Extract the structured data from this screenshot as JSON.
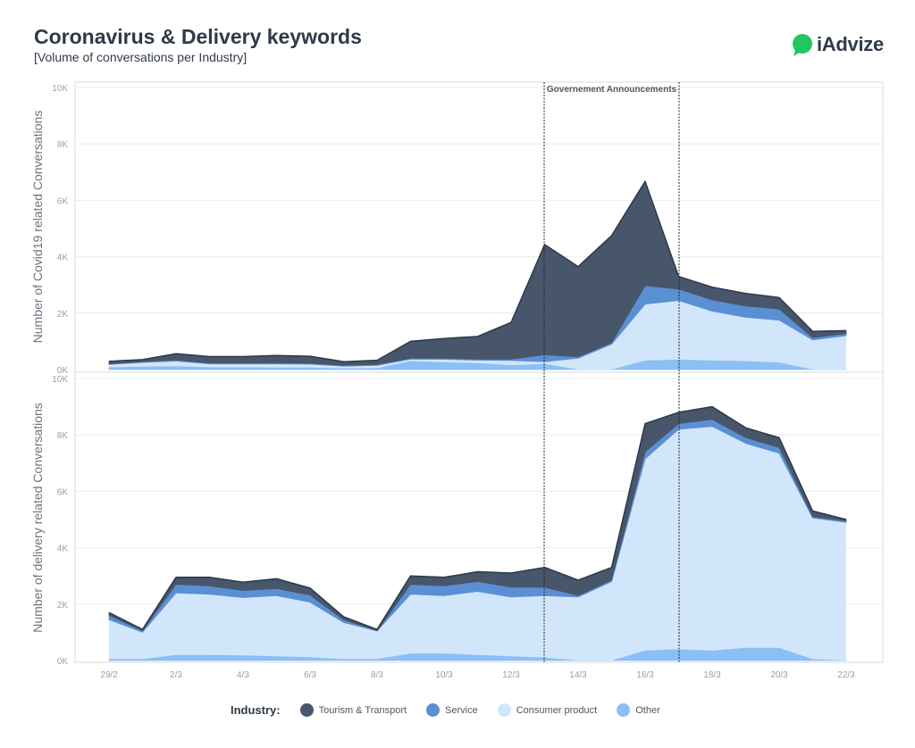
{
  "header": {
    "title": "Coronavirus & Delivery keywords",
    "subtitle": "[Volume of conversations per Industry]",
    "logo_text": "iAdvize"
  },
  "colors": {
    "tourism": "#47566b",
    "service": "#5a8fd3",
    "consumer": "#d2e6fb",
    "other": "#8bbff5",
    "logo_green": "#22c55e"
  },
  "legend": {
    "title": "Industry:",
    "items": [
      {
        "label": "Tourism & Transport",
        "color": "#47566b"
      },
      {
        "label": "Service",
        "color": "#5a8fd3"
      },
      {
        "label": "Consumer product",
        "color": "#d2e6fb"
      },
      {
        "label": "Other",
        "color": "#8bbff5"
      }
    ]
  },
  "chart_data": [
    {
      "type": "area",
      "stacked": true,
      "ylabel": "Number of Covid19 related Conversations",
      "ylim": [
        0,
        10000
      ],
      "yticks": [
        0,
        2000,
        4000,
        6000,
        8000,
        10000
      ],
      "ytick_labels": [
        "0K",
        "2K",
        "4K",
        "6K",
        "8K",
        "10K"
      ],
      "x": [
        "29/2",
        "1/3",
        "2/3",
        "3/3",
        "4/3",
        "5/3",
        "6/3",
        "7/3",
        "8/3",
        "9/3",
        "10/3",
        "11/3",
        "12/3",
        "13/3",
        "14/3",
        "15/3",
        "16/3",
        "17/3",
        "18/3",
        "19/3",
        "20/3",
        "21/3",
        "22/3"
      ],
      "annotation": {
        "label": "Governement Announcements",
        "from": "13/3",
        "to": "17/3"
      },
      "series": [
        {
          "name": "Other",
          "key": "other",
          "values": [
            80,
            100,
            120,
            80,
            80,
            70,
            70,
            40,
            50,
            300,
            260,
            230,
            150,
            200,
            0,
            0,
            320,
            350,
            320,
            300,
            250,
            0,
            0
          ]
        },
        {
          "name": "Consumer product",
          "key": "consumer",
          "values": [
            100,
            150,
            180,
            120,
            120,
            130,
            120,
            80,
            100,
            70,
            100,
            100,
            170,
            80,
            400,
            900,
            2000,
            2100,
            1750,
            1550,
            1500,
            1050,
            1200
          ]
        },
        {
          "name": "Service",
          "key": "service",
          "values": [
            20,
            30,
            40,
            30,
            30,
            30,
            30,
            30,
            30,
            30,
            40,
            40,
            50,
            250,
            50,
            50,
            650,
            400,
            400,
            400,
            400,
            80,
            80
          ]
        },
        {
          "name": "Tourism & Transport",
          "key": "tourism",
          "values": [
            90,
            70,
            220,
            230,
            230,
            270,
            250,
            130,
            150,
            600,
            700,
            800,
            1300,
            3900,
            3200,
            3800,
            3700,
            450,
            450,
            450,
            400,
            220,
            100
          ]
        }
      ]
    },
    {
      "type": "area",
      "stacked": true,
      "ylabel": "Number of delivery related Conversations",
      "ylim": [
        0,
        10000
      ],
      "yticks": [
        0,
        2000,
        4000,
        6000,
        8000,
        10000
      ],
      "ytick_labels": [
        "0K",
        "2K",
        "4K",
        "6K",
        "8K",
        "10K"
      ],
      "x": [
        "29/2",
        "1/3",
        "2/3",
        "3/3",
        "4/3",
        "5/3",
        "6/3",
        "7/3",
        "8/3",
        "9/3",
        "10/3",
        "11/3",
        "12/3",
        "13/3",
        "14/3",
        "15/3",
        "16/3",
        "17/3",
        "18/3",
        "19/3",
        "20/3",
        "21/3",
        "22/3"
      ],
      "xtick_labels": [
        "29/2",
        "",
        "2/3",
        "",
        "4/3",
        "",
        "6/3",
        "",
        "8/3",
        "",
        "10/3",
        "",
        "12/3",
        "",
        "14/3",
        "",
        "16/3",
        "",
        "18/3",
        "",
        "20/3",
        "",
        "22/3"
      ],
      "series": [
        {
          "name": "Other",
          "key": "other",
          "values": [
            50,
            50,
            200,
            200,
            180,
            150,
            120,
            50,
            50,
            250,
            250,
            200,
            150,
            100,
            0,
            0,
            350,
            400,
            350,
            450,
            450,
            50,
            0
          ]
        },
        {
          "name": "Consumer product",
          "key": "consumer",
          "values": [
            1400,
            950,
            2200,
            2150,
            2050,
            2150,
            1950,
            1300,
            1000,
            2100,
            2050,
            2250,
            2100,
            2200,
            2250,
            2800,
            6800,
            7800,
            7950,
            7250,
            6900,
            5000,
            4900
          ]
        },
        {
          "name": "Service",
          "key": "service",
          "values": [
            150,
            50,
            300,
            300,
            250,
            250,
            250,
            100,
            0,
            350,
            350,
            350,
            350,
            300,
            50,
            50,
            250,
            200,
            250,
            200,
            200,
            50,
            50
          ]
        },
        {
          "name": "Tourism & Transport",
          "key": "tourism",
          "values": [
            100,
            50,
            250,
            300,
            300,
            350,
            250,
            100,
            50,
            300,
            300,
            350,
            500,
            700,
            550,
            450,
            1000,
            400,
            450,
            350,
            350,
            200,
            50
          ]
        }
      ]
    }
  ]
}
